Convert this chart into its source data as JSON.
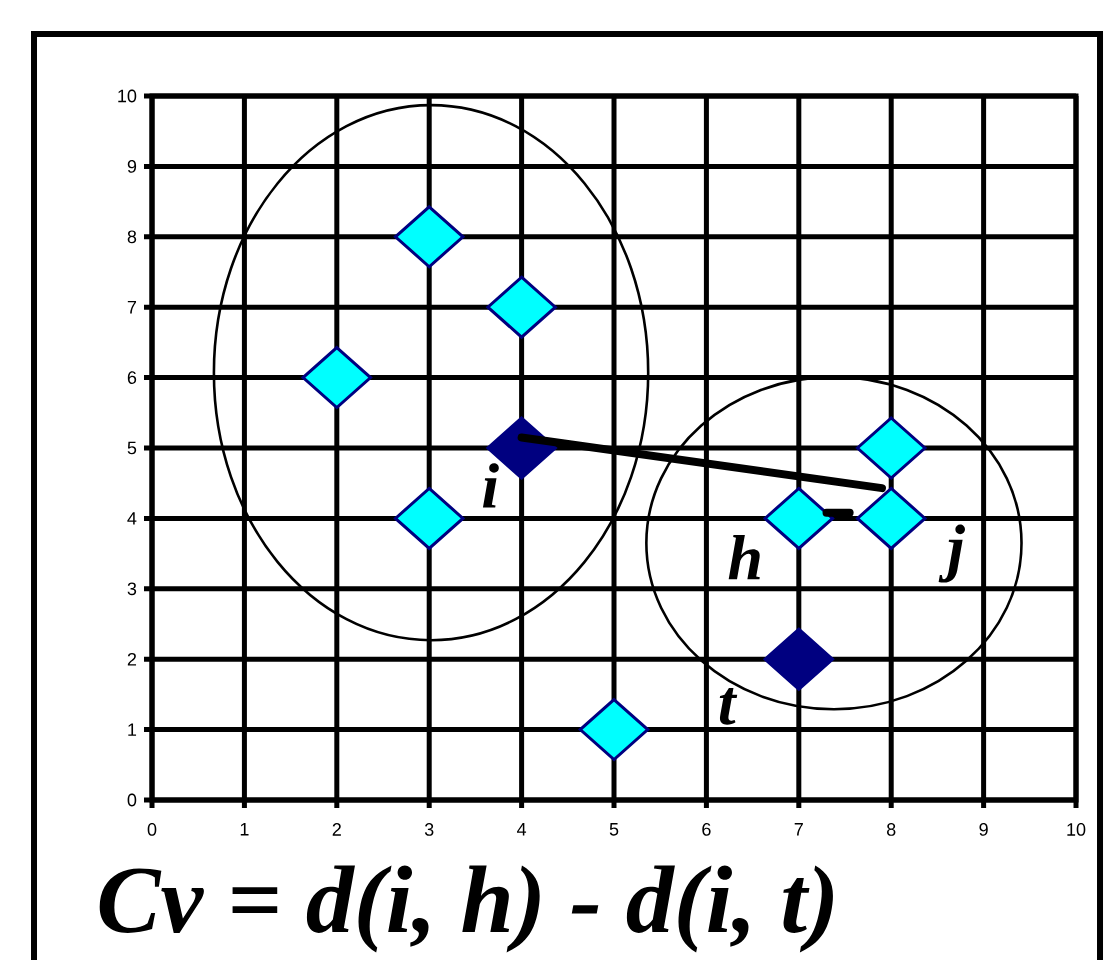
{
  "chart_data": {
    "type": "scatter",
    "xlim": [
      0,
      10
    ],
    "ylim": [
      0,
      10
    ],
    "xticks": [
      0,
      1,
      2,
      3,
      4,
      5,
      6,
      7,
      8,
      9,
      10
    ],
    "yticks": [
      0,
      1,
      2,
      3,
      4,
      5,
      6,
      7,
      8,
      9,
      10
    ],
    "grid": true,
    "series": [
      {
        "marker": "diamond",
        "color": "#00ffff",
        "x": [
          2,
          3,
          4,
          3,
          5,
          7,
          8,
          8
        ],
        "values": [
          6,
          8,
          7,
          4,
          1,
          4,
          4,
          5
        ]
      },
      {
        "marker": "diamond",
        "color": "#000080",
        "x": [
          4,
          7
        ],
        "values": [
          5,
          2
        ]
      },
      {
        "type": "line",
        "marker": "none",
        "color": "#000000",
        "x": [
          4,
          7.9
        ],
        "values": [
          5.15,
          4.43
        ]
      },
      {
        "type": "line",
        "marker": "none",
        "color": "#000000",
        "x": [
          7.3,
          7.55
        ],
        "values": [
          4.08,
          4.08
        ]
      }
    ],
    "annotations": [
      "i",
      "h",
      "j",
      "t",
      "Cv = d(i, h) - d(i, t)"
    ]
  }
}
